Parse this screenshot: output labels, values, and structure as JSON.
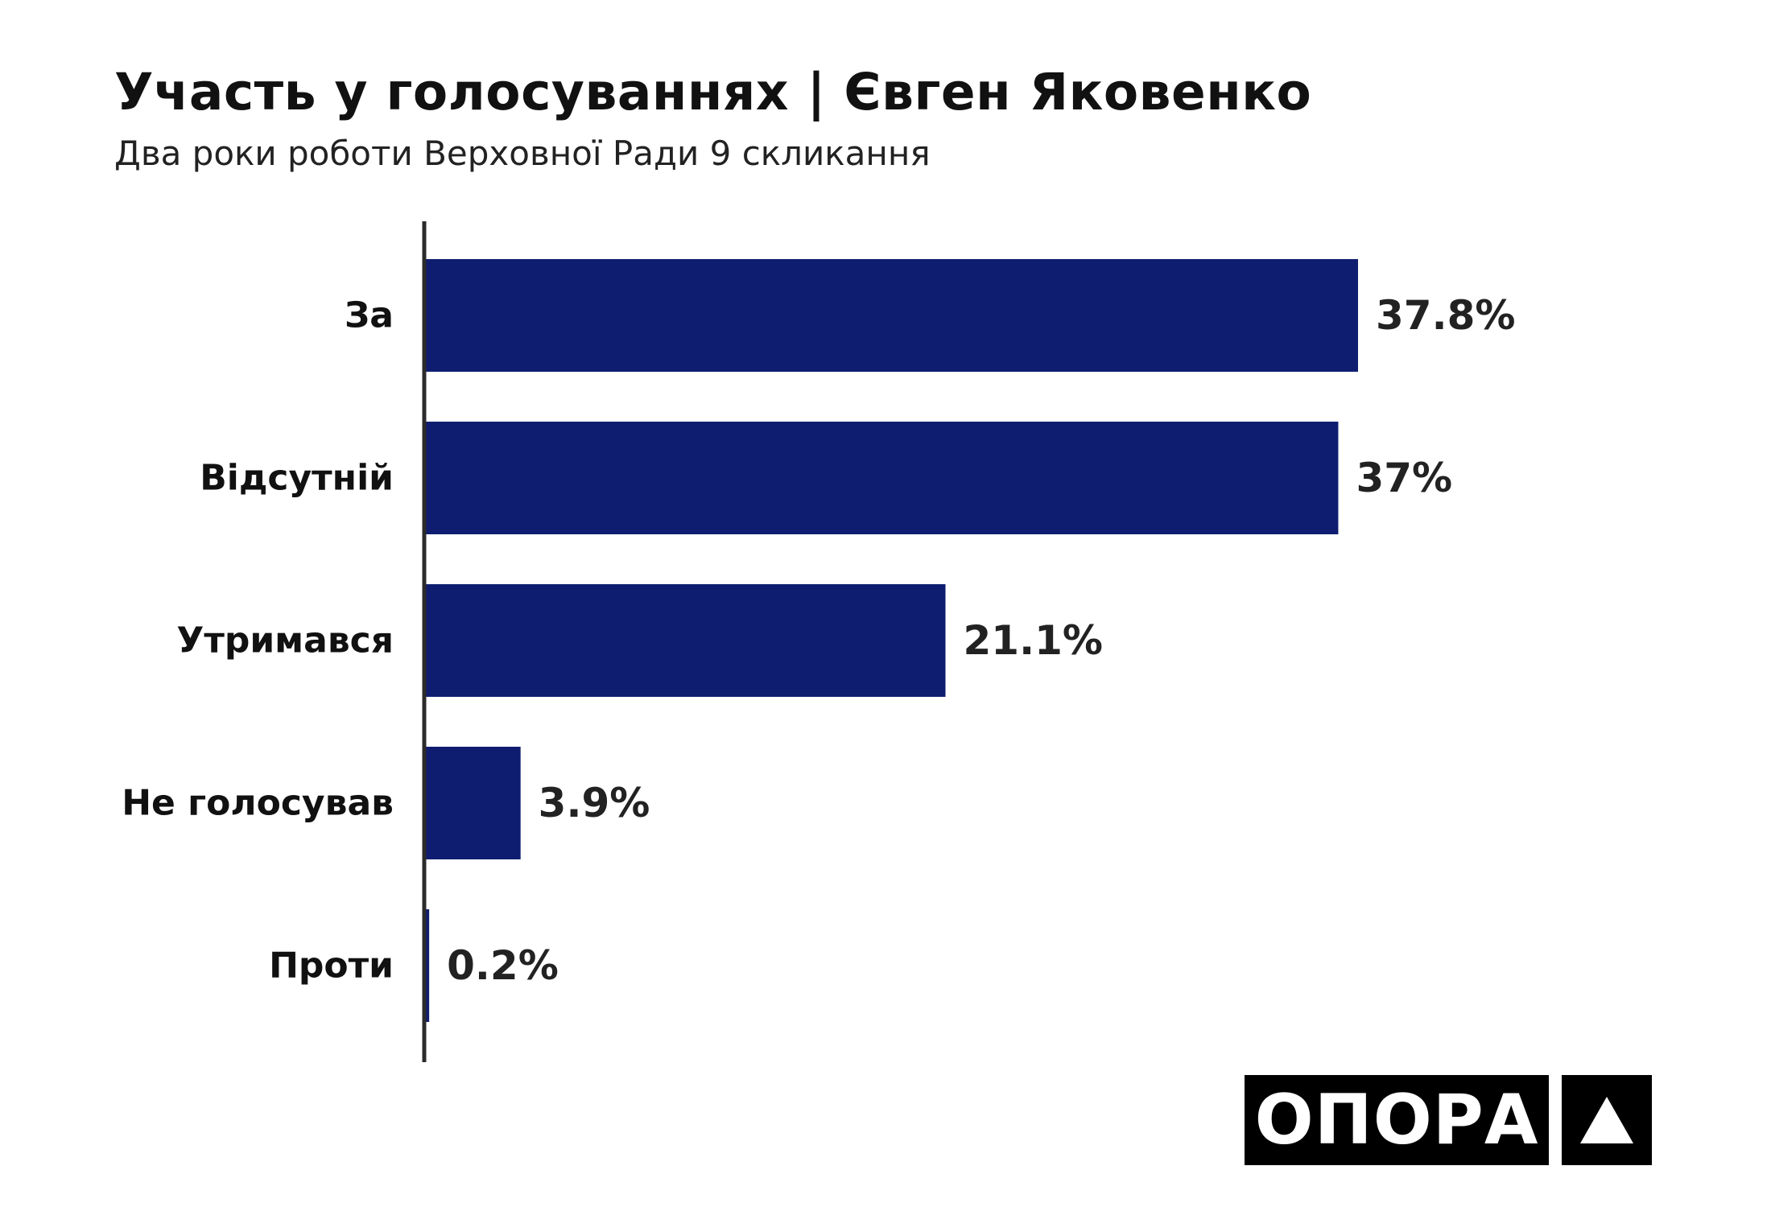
{
  "header": {
    "title": "Участь у голосуваннях | Євген Яковенко",
    "subtitle": "Два роки роботи Верховної Ради 9 скликання"
  },
  "logo": {
    "text": "ОПОРА",
    "mark_icon": "triangle-icon"
  },
  "colors": {
    "bar": "#0f1d70",
    "axis": "#2b2b2b",
    "text": "#111111",
    "logo_bg": "#000000",
    "logo_fg": "#ffffff"
  },
  "chart_data": {
    "type": "bar",
    "orientation": "horizontal",
    "categories": [
      "За",
      "Відсутній",
      "Утримався",
      "Не голосував",
      "Проти"
    ],
    "values": [
      37.8,
      37,
      21.1,
      3.9,
      0.2
    ],
    "value_labels": [
      "37.8%",
      "37%",
      "21.1%",
      "3.9%",
      "0.2%"
    ],
    "unit": "%",
    "xlim": [
      0,
      37.8
    ],
    "grid": false,
    "legend": "none"
  }
}
